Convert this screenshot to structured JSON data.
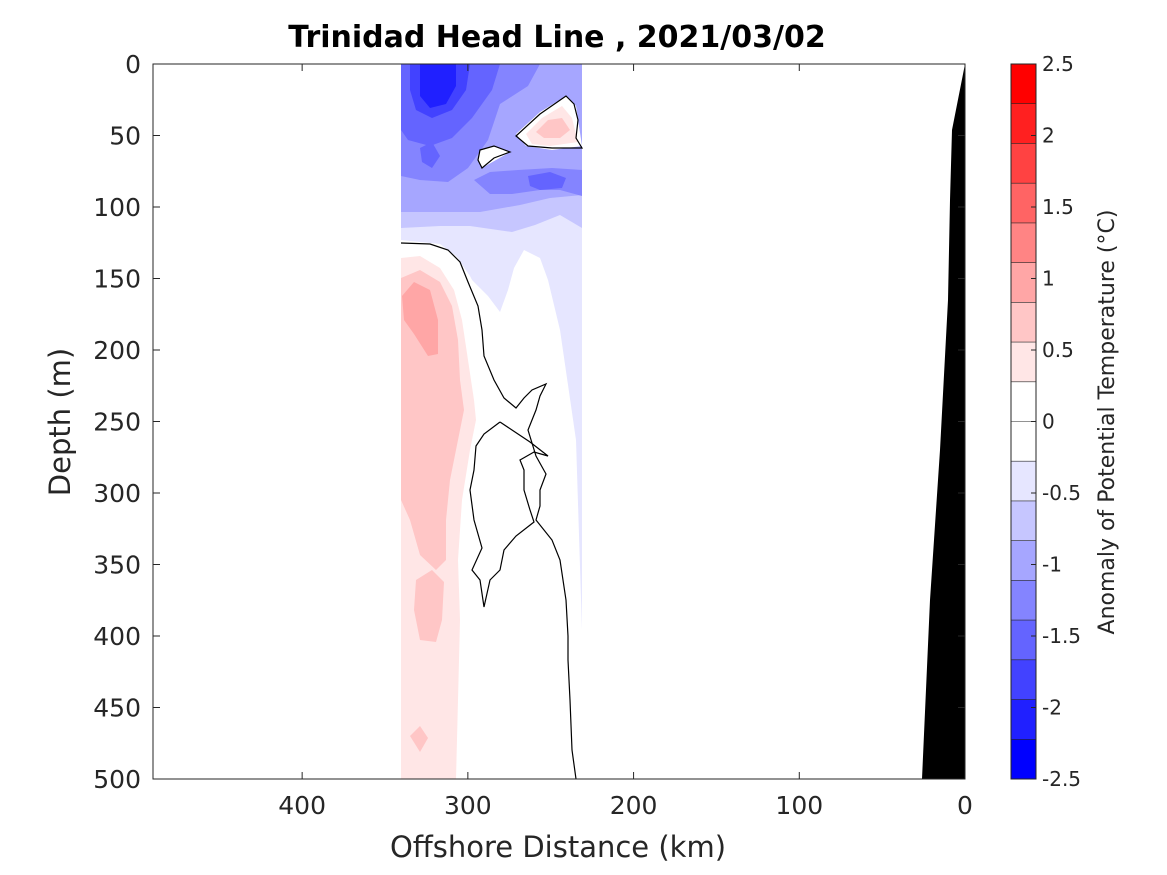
{
  "chart_data": {
    "type": "heatmap",
    "title": "Trinidad Head Line , 2021/03/02",
    "xlabel": "Offshore Distance (km)",
    "ylabel": "Depth (m)",
    "xlim": [
      490,
      0
    ],
    "ylim": [
      500,
      0
    ],
    "x_reversed": true,
    "y_reversed": true,
    "x_ticks": [
      400,
      300,
      200,
      100,
      0
    ],
    "y_ticks": [
      0,
      50,
      100,
      150,
      200,
      250,
      300,
      350,
      400,
      450,
      500
    ],
    "x_tick_labels": [
      "400",
      "300",
      "200",
      "100",
      "0"
    ],
    "y_tick_labels": [
      "0",
      "50",
      "100",
      "150",
      "200",
      "250",
      "300",
      "350",
      "400",
      "450",
      "500"
    ],
    "colorbar": {
      "label": "Anomaly of Potential Temperature (°C)",
      "min": -2.5,
      "max": 2.5,
      "step": 0.25,
      "ticks": [
        2.5,
        2,
        1.5,
        1,
        0.5,
        0,
        -0.5,
        -1,
        -1.5,
        -2,
        -2.5
      ],
      "tick_labels": [
        "2.5",
        "2",
        "1.5",
        "1",
        "0.5",
        "0",
        "-0.5",
        "-1",
        "-1.5",
        "-2",
        "-2.5"
      ],
      "colors_top_to_bottom": [
        "#ff0000",
        "#ff2020",
        "#ff4242",
        "#ff6464",
        "#ff8484",
        "#ffa6a6",
        "#ffc6c6",
        "#ffe6e6",
        "#ffffff",
        "#ffffff",
        "#e6e6ff",
        "#c6c6ff",
        "#a6a6ff",
        "#8484ff",
        "#6464ff",
        "#4242ff",
        "#2020ff",
        "#0000ff"
      ]
    },
    "section": {
      "station_range_km": [
        340,
        230
      ],
      "data_x_km": [
        340,
        300,
        260,
        230
      ],
      "data_depths_m": [
        0,
        50,
        100,
        200,
        300,
        400,
        500
      ],
      "anomaly_grid_C": [
        [
          -1.8,
          -1.4,
          -0.6,
          -0.5
        ],
        [
          -1.3,
          -0.4,
          0.5,
          -0.7
        ],
        [
          -0.7,
          -0.8,
          -1.1,
          -0.9
        ],
        [
          0.7,
          -0.2,
          -0.3,
          -0.3
        ],
        [
          0.4,
          0.1,
          0.1,
          -0.3
        ],
        [
          0.4,
          0.1,
          0.0,
          null
        ],
        [
          0.3,
          0.0,
          null,
          null
        ]
      ]
    },
    "bathymetry_color": "#000000"
  }
}
